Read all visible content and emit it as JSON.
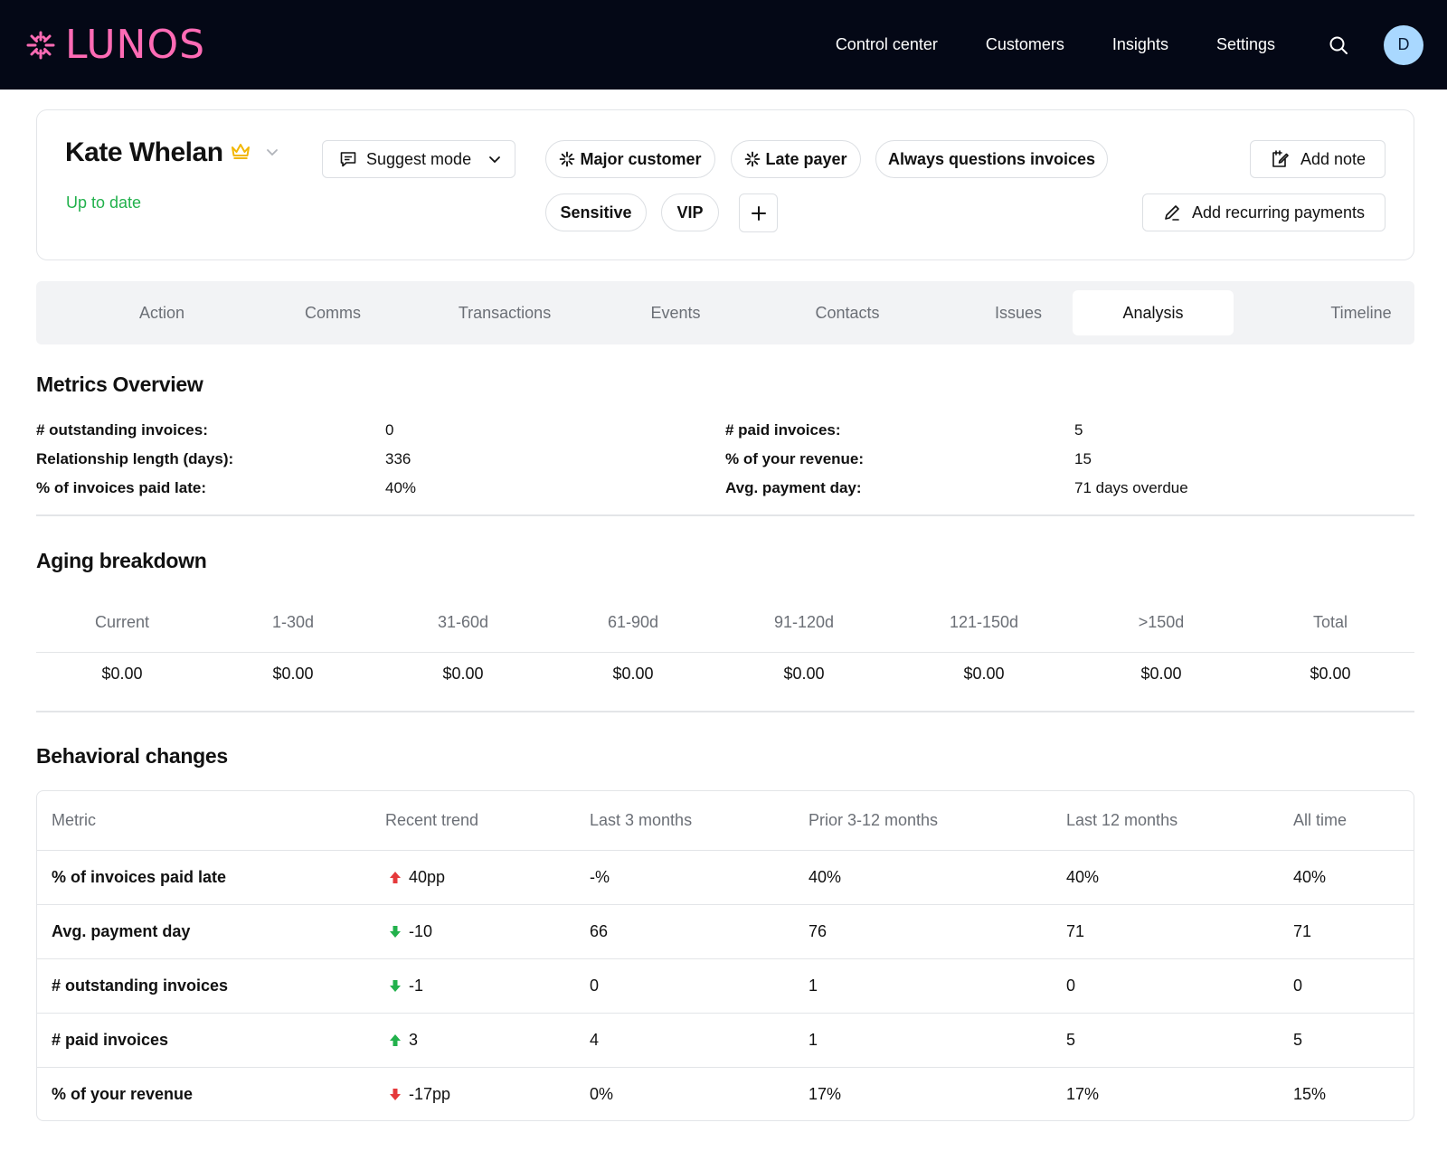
{
  "brand": {
    "name": "LUNOS",
    "color": "#ff6bb5"
  },
  "nav": {
    "links": [
      "Control center",
      "Customers",
      "Insights",
      "Settings"
    ],
    "avatar_initial": "D"
  },
  "customer": {
    "name": "Kate Whelan",
    "status": "Up to date",
    "mode_label": "Suggest mode",
    "tags": [
      "Major customer",
      "Late payer",
      "Always questions invoices",
      "Sensitive",
      "VIP"
    ],
    "add_note_label": "Add note",
    "add_recurring_label": "Add recurring payments"
  },
  "tabs": [
    "Action",
    "Comms",
    "Transactions",
    "Events",
    "Contacts",
    "Issues",
    "Analysis",
    "Timeline"
  ],
  "active_tab": "Analysis",
  "metrics": {
    "title": "Metrics Overview",
    "left": [
      {
        "label": "# outstanding invoices:",
        "value": "0"
      },
      {
        "label": "Relationship length (days):",
        "value": "336"
      },
      {
        "label": "% of invoices paid late:",
        "value": "40%"
      }
    ],
    "right": [
      {
        "label": "# paid invoices:",
        "value": "5"
      },
      {
        "label": "% of your revenue:",
        "value": "15"
      },
      {
        "label": "Avg. payment day:",
        "value": "71 days overdue"
      }
    ]
  },
  "aging": {
    "title": "Aging breakdown",
    "headers": [
      "Current",
      "1-30d",
      "31-60d",
      "61-90d",
      "91-120d",
      "121-150d",
      ">150d",
      "Total"
    ],
    "values": [
      "$0.00",
      "$0.00",
      "$0.00",
      "$0.00",
      "$0.00",
      "$0.00",
      "$0.00",
      "$0.00"
    ]
  },
  "behavioral": {
    "title": "Behavioral changes",
    "headers": [
      "Metric",
      "Recent trend",
      "Last 3 months",
      "Prior 3-12 months",
      "Last 12 months",
      "All time"
    ],
    "rows": [
      {
        "metric": "% of invoices paid late",
        "trend": "40pp",
        "trend_dir": "up",
        "trend_color": "#e5393b",
        "last3": "-%",
        "prior": "40%",
        "last12": "40%",
        "all": "40%"
      },
      {
        "metric": "Avg. payment day",
        "trend": "-10",
        "trend_dir": "down",
        "trend_color": "#22b14c",
        "last3": "66",
        "prior": "76",
        "last12": "71",
        "all": "71"
      },
      {
        "metric": "# outstanding invoices",
        "trend": "-1",
        "trend_dir": "down",
        "trend_color": "#22b14c",
        "last3": "0",
        "prior": "1",
        "last12": "0",
        "all": "0"
      },
      {
        "metric": "# paid invoices",
        "trend": "3",
        "trend_dir": "up",
        "trend_color": "#22b14c",
        "last3": "4",
        "prior": "1",
        "last12": "5",
        "all": "5"
      },
      {
        "metric": "% of your revenue",
        "trend": "-17pp",
        "trend_dir": "down",
        "trend_color": "#e5393b",
        "last3": "0%",
        "prior": "17%",
        "last12": "17%",
        "all": "15%"
      }
    ]
  }
}
